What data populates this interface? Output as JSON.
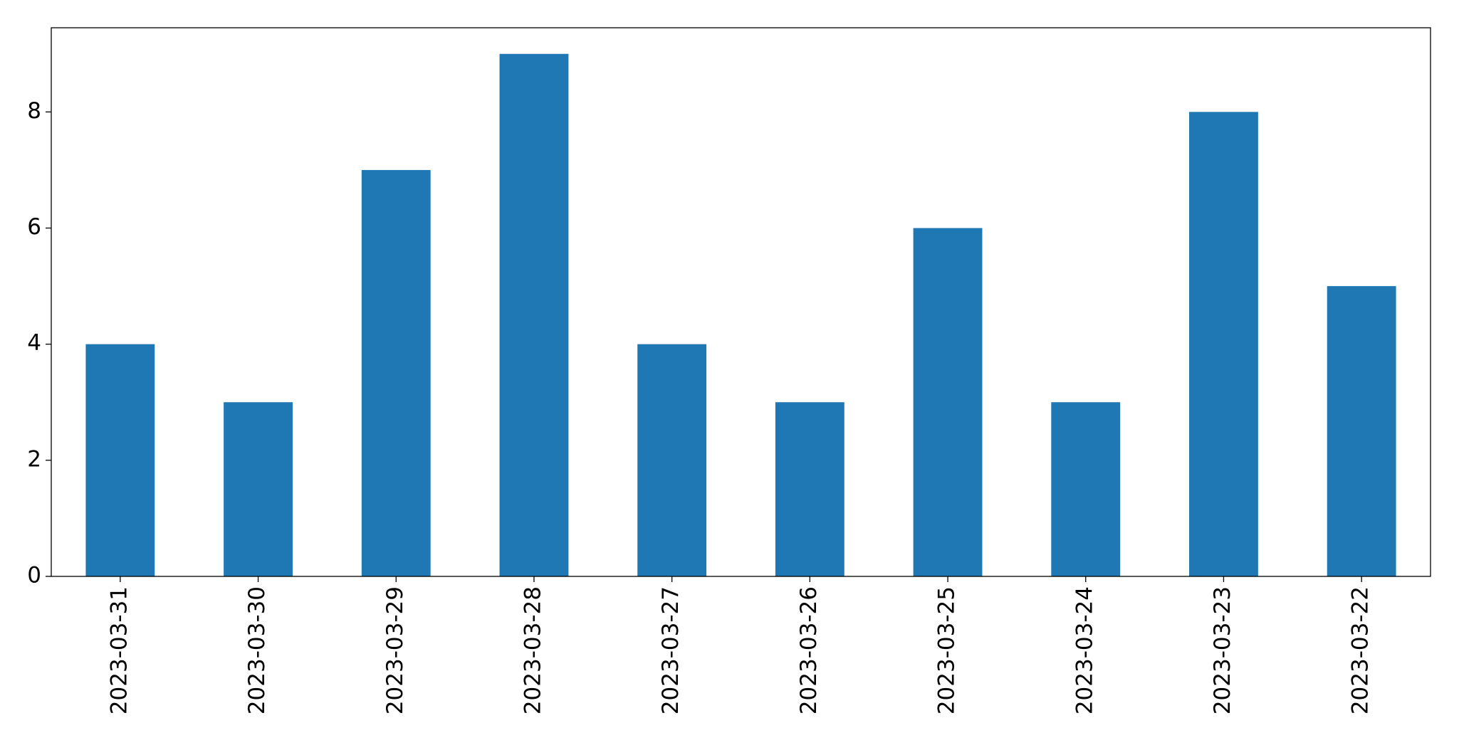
{
  "chart_data": {
    "type": "bar",
    "categories": [
      "2023-03-31",
      "2023-03-30",
      "2023-03-29",
      "2023-03-28",
      "2023-03-27",
      "2023-03-26",
      "2023-03-25",
      "2023-03-24",
      "2023-03-23",
      "2023-03-22"
    ],
    "values": [
      4,
      3,
      7,
      9,
      4,
      3,
      6,
      3,
      8,
      5
    ],
    "color": "#1f77b4",
    "ylim": [
      0,
      9.45
    ],
    "yticks": [
      0,
      2,
      4,
      6,
      8
    ],
    "grid": false
  }
}
